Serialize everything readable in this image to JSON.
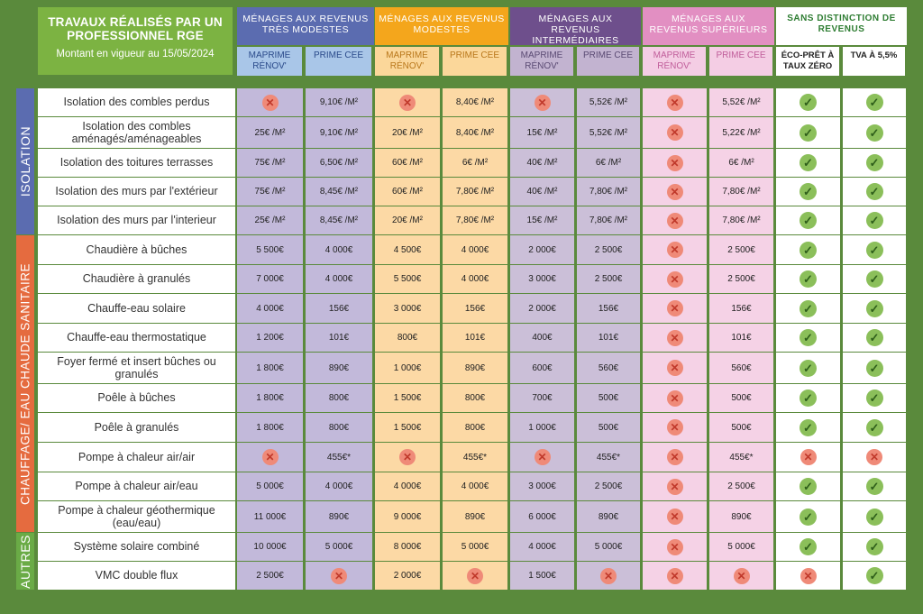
{
  "header": {
    "title": "TRAVAUX RÉALISÉS PAR UN PROFESSIONNEL RGE",
    "subtitle": "Montant en vigueur au 15/05/2024"
  },
  "groups": [
    {
      "label": "MÉNAGES AUX REVENUS TRÈS MODESTES",
      "color": "#5b6cb0",
      "sub_color": "#a9c6e8",
      "sub_text_color": "#2a4a8a",
      "cell_color": "#c2b9da",
      "alt_color": "#c2b9da"
    },
    {
      "label": "MÉNAGES AUX REVENUS MODESTES",
      "color": "#f4a61c",
      "sub_color": "#fbd79a",
      "sub_text_color": "#b9771a",
      "cell_color": "#fcd9a5",
      "alt_color": "#fcd9a5"
    },
    {
      "label": "MÉNAGES AUX REVENUS INTERMÉDIAIRES",
      "color": "#6e4f8c",
      "sub_color": "#c2b3d0",
      "sub_text_color": "#5a4a73",
      "cell_color": "#cbbfd8",
      "alt_color": "#cbbfd8"
    },
    {
      "label": "MÉNAGES AUX REVENUS SUPÉRIEURS",
      "color": "#e28fc2",
      "sub_color": "#f4cde4",
      "sub_text_color": "#c05d9a",
      "cell_color": "#f5d2e6",
      "alt_color": "#f5d2e6"
    },
    {
      "label": "SANS DISTINCTION DE REVENUS",
      "color": "#ffffff",
      "sub_color": "#ffffff",
      "sub_text_color": "#222222",
      "cell_color": "#ffffff",
      "alt_color": "#ffffff"
    }
  ],
  "subcols": [
    "MAPRIME RÉNOV'",
    "PRIME CEE",
    "MAPRIME RÉNOV'",
    "PRIME CEE",
    "MAPRIME RÉNOV'",
    "PRIME CEE",
    "MAPRIME RÉNOV'",
    "PRIME CEE",
    "ÉCO-PRÊT À TAUX ZÉRO",
    "TVA À 5,5%"
  ],
  "sections": [
    {
      "label": "ISOLATION",
      "color": "#5b6cb0"
    },
    {
      "label": "CHAUFFAGE/ EAU CHAUDE SANITAIRE",
      "color": "#e56b3f"
    },
    {
      "label": "AUTRES",
      "color": "#6aab46"
    }
  ],
  "rows": [
    {
      "label": "Isolation des combles perdus",
      "v": [
        "X",
        "9,10€ /M²",
        "X",
        "8,40€ /M²",
        "X",
        "5,52€ /M²",
        "X",
        "5,52€ /M²",
        "V",
        "V"
      ]
    },
    {
      "label": "Isolation des combles aménagés/aménageables",
      "v": [
        "25€ /M²",
        "9,10€ /M²",
        "20€ /M²",
        "8,40€ /M²",
        "15€ /M²",
        "5,52€ /M²",
        "X",
        "5,22€ /M²",
        "V",
        "V"
      ]
    },
    {
      "label": "Isolation des toitures terrasses",
      "v": [
        "75€ /M²",
        "6,50€ /M²",
        "60€ /M²",
        "6€ /M²",
        "40€ /M²",
        "6€ /M²",
        "X",
        "6€ /M²",
        "V",
        "V"
      ]
    },
    {
      "label": "Isolation des murs par l'extérieur",
      "v": [
        "75€ /M²",
        "8,45€ /M²",
        "60€ /M²",
        "7,80€ /M²",
        "40€ /M²",
        "7,80€ /M²",
        "X",
        "7,80€ /M²",
        "V",
        "V"
      ]
    },
    {
      "label": "Isolation des murs par l'interieur",
      "v": [
        "25€ /M²",
        "8,45€ /M²",
        "20€ /M²",
        "7,80€ /M²",
        "15€ /M²",
        "7,80€ /M²",
        "X",
        "7,80€ /M²",
        "V",
        "V"
      ]
    },
    {
      "label": "Chaudière à bûches",
      "v": [
        "5 500€",
        "4 000€",
        "4 500€",
        "4 000€",
        "2 000€",
        "2 500€",
        "X",
        "2 500€",
        "V",
        "V"
      ]
    },
    {
      "label": "Chaudière à granulés",
      "v": [
        "7 000€",
        "4 000€",
        "5 500€",
        "4 000€",
        "3 000€",
        "2 500€",
        "X",
        "2 500€",
        "V",
        "V"
      ]
    },
    {
      "label": "Chauffe-eau solaire",
      "v": [
        "4 000€",
        "156€",
        "3 000€",
        "156€",
        "2 000€",
        "156€",
        "X",
        "156€",
        "V",
        "V"
      ]
    },
    {
      "label": "Chauffe-eau thermostatique",
      "v": [
        "1 200€",
        "101€",
        "800€",
        "101€",
        "400€",
        "101€",
        "X",
        "101€",
        "V",
        "V"
      ]
    },
    {
      "label": "Foyer fermé et insert bûches ou granulés",
      "v": [
        "1 800€",
        "890€",
        "1 000€",
        "890€",
        "600€",
        "560€",
        "X",
        "560€",
        "V",
        "V"
      ]
    },
    {
      "label": "Poêle à bûches",
      "v": [
        "1 800€",
        "800€",
        "1 500€",
        "800€",
        "700€",
        "500€",
        "X",
        "500€",
        "V",
        "V"
      ]
    },
    {
      "label": "Poêle à granulés",
      "v": [
        "1 800€",
        "800€",
        "1 500€",
        "800€",
        "1 000€",
        "500€",
        "X",
        "500€",
        "V",
        "V"
      ]
    },
    {
      "label": "Pompe à chaleur air/air",
      "v": [
        "X",
        "455€*",
        "X",
        "455€*",
        "X",
        "455€*",
        "X",
        "455€*",
        "X",
        "X"
      ]
    },
    {
      "label": "Pompe à chaleur air/eau",
      "v": [
        "5 000€",
        "4 000€",
        "4 000€",
        "4 000€",
        "3 000€",
        "2 500€",
        "X",
        "2 500€",
        "V",
        "V"
      ]
    },
    {
      "label": "Pompe à chaleur géothermique (eau/eau)",
      "v": [
        "11 000€",
        "890€",
        "9 000€",
        "890€",
        "6 000€",
        "890€",
        "X",
        "890€",
        "V",
        "V"
      ]
    },
    {
      "label": "Système solaire combiné",
      "v": [
        "10 000€",
        "5 000€",
        "8 000€",
        "5 000€",
        "4 000€",
        "5 000€",
        "X",
        "5 000€",
        "V",
        "V"
      ]
    },
    {
      "label": "VMC double flux",
      "v": [
        "2 500€",
        "X",
        "2 000€",
        "X",
        "1 500€",
        "X",
        "X",
        "X",
        "X",
        "V"
      ]
    }
  ],
  "icons": {
    "cross": "cross-icon",
    "check": "check-icon"
  }
}
